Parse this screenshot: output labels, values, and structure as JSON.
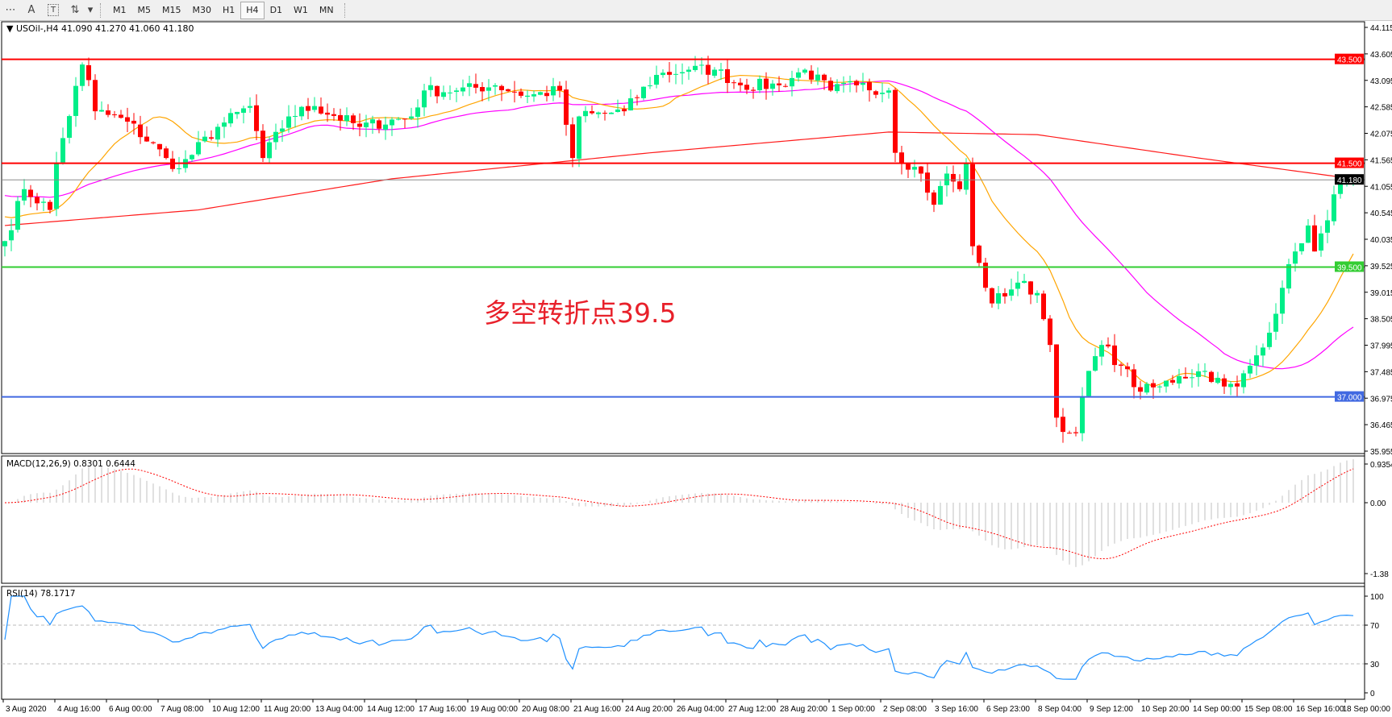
{
  "toolbar": {
    "tools": [
      {
        "name": "grid-icon",
        "glyph": "⋯"
      },
      {
        "name": "text-icon",
        "glyph": "A"
      },
      {
        "name": "text-label-icon",
        "glyph": "T"
      },
      {
        "name": "arrows-icon",
        "glyph": "⇅"
      }
    ],
    "dropdown_glyph": "▾",
    "timeframes": [
      "M1",
      "M5",
      "M15",
      "M30",
      "H1",
      "H4",
      "D1",
      "W1",
      "MN"
    ],
    "active_timeframe": "H4"
  },
  "header": {
    "symbol_label": "▼ USOil-,H4  41.090 41.270 41.060 41.180"
  },
  "annotation": "多空转折点39.5",
  "indicators": {
    "macd_label": "MACD(12,26,9) 0.8301 0.6444",
    "rsi_label": "RSI(14) 78.1717"
  },
  "colors": {
    "bull": "#00ee88",
    "bear": "#ff0000",
    "ma_fast": "#ffa500",
    "ma_mid": "#ff00ff",
    "ma_slow": "#ff1a1a",
    "rsi": "#1e90ff",
    "macd_hist": "#c0c0c0",
    "macd_signal": "#ff0000"
  },
  "chart_data": {
    "type": "candlestick",
    "symbol": "USOil-",
    "timeframe": "H4",
    "ohlc_last": {
      "open": 41.09,
      "high": 41.27,
      "low": 41.06,
      "close": 41.18
    },
    "current_price": "41.180",
    "ylim": [
      35.955,
      44.115
    ],
    "y_ticks": [
      "44.115",
      "43.605",
      "43.095",
      "42.585",
      "42.075",
      "41.565",
      "41.055",
      "40.545",
      "40.035",
      "39.525",
      "39.015",
      "38.505",
      "37.995",
      "37.485",
      "36.975",
      "36.465",
      "35.955"
    ],
    "levels": [
      {
        "value": "43.500",
        "color": "#ff0000"
      },
      {
        "value": "41.500",
        "color": "#ff0000"
      },
      {
        "value": "39.500",
        "color": "#32cd32"
      },
      {
        "value": "37.000",
        "color": "#4169e1"
      }
    ],
    "close_path": [
      [
        0,
        40.0
      ],
      [
        3,
        41.0
      ],
      [
        7,
        40.6
      ],
      [
        8,
        41.5
      ],
      [
        12,
        43.4
      ],
      [
        13,
        43.1
      ],
      [
        14,
        42.5
      ],
      [
        19,
        42.3
      ],
      [
        25,
        41.6
      ],
      [
        27,
        41.4
      ],
      [
        33,
        42.2
      ],
      [
        38,
        42.6
      ],
      [
        40,
        41.6
      ],
      [
        44,
        42.4
      ],
      [
        48,
        42.6
      ],
      [
        55,
        42.2
      ],
      [
        63,
        42.4
      ],
      [
        65,
        42.9
      ],
      [
        70,
        42.9
      ],
      [
        76,
        43.0
      ],
      [
        81,
        42.8
      ],
      [
        86,
        42.9
      ],
      [
        88,
        41.6
      ],
      [
        89,
        42.4
      ],
      [
        96,
        42.5
      ],
      [
        101,
        43.2
      ],
      [
        106,
        43.3
      ],
      [
        110,
        43.3
      ],
      [
        114,
        43.0
      ],
      [
        120,
        43.0
      ],
      [
        124,
        43.3
      ],
      [
        128,
        42.9
      ],
      [
        132,
        43.0
      ],
      [
        137,
        42.9
      ],
      [
        138,
        41.7
      ],
      [
        142,
        41.3
      ],
      [
        144,
        40.7
      ],
      [
        146,
        41.3
      ],
      [
        148,
        41.0
      ],
      [
        149,
        41.5
      ],
      [
        150,
        39.9
      ],
      [
        153,
        38.8
      ],
      [
        157,
        39.2
      ],
      [
        160,
        39.0
      ],
      [
        162,
        38.0
      ],
      [
        163,
        36.6
      ],
      [
        165,
        36.3
      ],
      [
        166,
        36.3
      ],
      [
        168,
        37.5
      ],
      [
        170,
        38.0
      ],
      [
        173,
        37.6
      ],
      [
        176,
        37.1
      ],
      [
        179,
        37.2
      ],
      [
        182,
        37.4
      ],
      [
        186,
        37.5
      ],
      [
        189,
        37.2
      ],
      [
        191,
        37.2
      ],
      [
        194,
        37.8
      ],
      [
        197,
        38.6
      ],
      [
        198,
        39.1
      ],
      [
        200,
        39.8
      ],
      [
        202,
        40.3
      ],
      [
        203,
        39.8
      ],
      [
        205,
        40.4
      ],
      [
        206,
        40.9
      ],
      [
        208,
        41.2
      ],
      [
        209,
        41.18
      ]
    ],
    "ma_slow_path": [
      [
        0,
        40.3
      ],
      [
        30,
        40.6
      ],
      [
        60,
        41.2
      ],
      [
        100,
        41.7
      ],
      [
        137,
        42.1
      ],
      [
        160,
        42.05
      ],
      [
        185,
        41.6
      ],
      [
        209,
        41.2
      ]
    ],
    "macd": {
      "ylim_labels": [
        "0.9354",
        "0.00",
        "-1.38"
      ]
    },
    "rsi": {
      "ticks": [
        "100",
        "70",
        "30",
        "0"
      ]
    },
    "x_labels": [
      "3 Aug 2020",
      "4 Aug 16:00",
      "6 Aug 00:00",
      "7 Aug 08:00",
      "10 Aug 12:00",
      "11 Aug 20:00",
      "13 Aug 04:00",
      "14 Aug 12:00",
      "17 Aug 16:00",
      "19 Aug 00:00",
      "20 Aug 08:00",
      "21 Aug 16:00",
      "24 Aug 20:00",
      "26 Aug 04:00",
      "27 Aug 12:00",
      "28 Aug 20:00",
      "1 Sep 00:00",
      "2 Sep 08:00",
      "3 Sep 16:00",
      "6 Sep 23:00",
      "8 Sep 04:00",
      "9 Sep 12:00",
      "10 Sep 20:00",
      "14 Sep 00:00",
      "15 Sep 08:00",
      "16 Sep 16:00",
      "18 Sep 00:00"
    ]
  }
}
